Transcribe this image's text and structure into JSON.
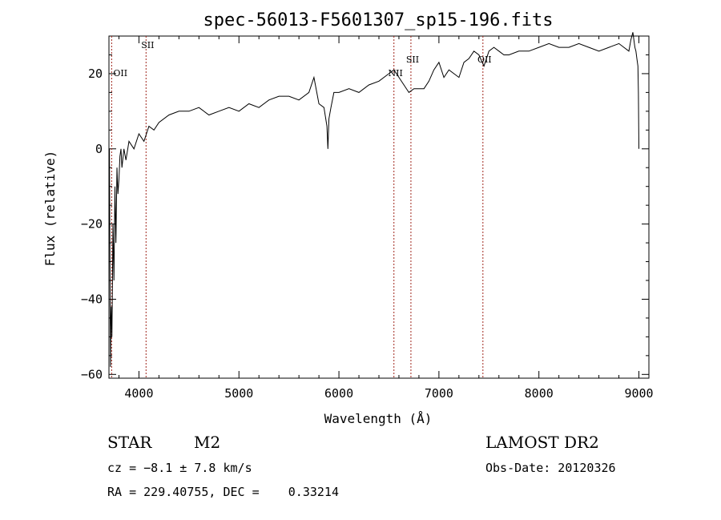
{
  "chart_data": {
    "type": "line",
    "title": "spec-56013-F5601307_sp15-196.fits",
    "xlabel": "Wavelength (Å)",
    "ylabel": "Flux (relative)",
    "xlim": [
      3700,
      9100
    ],
    "ylim": [
      -61,
      30
    ],
    "xticks": [
      4000,
      5000,
      6000,
      7000,
      8000,
      9000
    ],
    "yticks": [
      -60,
      -40,
      -20,
      0,
      20
    ],
    "grid": false,
    "line_color": "#000000",
    "marker_color": "#a0261c",
    "series": [
      {
        "x": [
          3705,
          3710,
          3715,
          3720,
          3725,
          3730,
          3740,
          3750,
          3760,
          3770,
          3780,
          3790,
          3800,
          3810,
          3820,
          3830,
          3850,
          3870,
          3900,
          3950,
          4000,
          4050,
          4100,
          4150,
          4200,
          4300,
          4400,
          4500,
          4600,
          4700,
          4800,
          4900,
          5000,
          5100,
          5200,
          5300,
          5400,
          5500,
          5600,
          5700,
          5750,
          5800,
          5850,
          5880,
          5890,
          5900,
          5920,
          5950,
          6000,
          6100,
          6200,
          6300,
          6400,
          6500,
          6550,
          6600,
          6650,
          6700,
          6750,
          6800,
          6850,
          6900,
          6950,
          7000,
          7050,
          7100,
          7150,
          7200,
          7250,
          7300,
          7350,
          7400,
          7450,
          7500,
          7550,
          7600,
          7650,
          7700,
          7800,
          7900,
          8000,
          8100,
          8200,
          8300,
          8400,
          8500,
          8600,
          8700,
          8800,
          8850,
          8900,
          8920,
          8940,
          8960,
          8970,
          8980,
          8990,
          8995,
          9000
        ],
        "y": [
          0,
          -30,
          -58,
          -45,
          -42,
          -50,
          -20,
          -35,
          -10,
          -25,
          -5,
          -12,
          -8,
          -2,
          0,
          -5,
          0,
          -3,
          2,
          0,
          4,
          2,
          6,
          5,
          7,
          9,
          10,
          10,
          11,
          9,
          10,
          11,
          10,
          12,
          11,
          13,
          14,
          14,
          13,
          15,
          19,
          12,
          11,
          6,
          0,
          8,
          11,
          15,
          15,
          16,
          15,
          17,
          18,
          20,
          21,
          19,
          17,
          15,
          16,
          16,
          16,
          18,
          21,
          23,
          19,
          21,
          20,
          19,
          23,
          24,
          26,
          25,
          22,
          26,
          27,
          26,
          25,
          25,
          26,
          26,
          27,
          28,
          27,
          27,
          28,
          27,
          26,
          27,
          28,
          27,
          26,
          29,
          31,
          27,
          26,
          24,
          22,
          15,
          0
        ]
      }
    ],
    "markers": [
      {
        "label": "OII",
        "x": 3727
      },
      {
        "label": "SII",
        "x": 4071
      },
      {
        "label": "NII",
        "x": 6550
      },
      {
        "label": "SII",
        "x": 6720
      },
      {
        "label": "OII",
        "x": 7440
      }
    ],
    "annotations": {
      "object_class": "STAR",
      "subclass": "M2",
      "cz": "cz = −8.1 ± 7.8 km/s",
      "coords": "RA = 229.40755, DEC =    0.33214",
      "survey": "LAMOST DR2",
      "obs_date": "Obs-Date: 20120326"
    }
  }
}
